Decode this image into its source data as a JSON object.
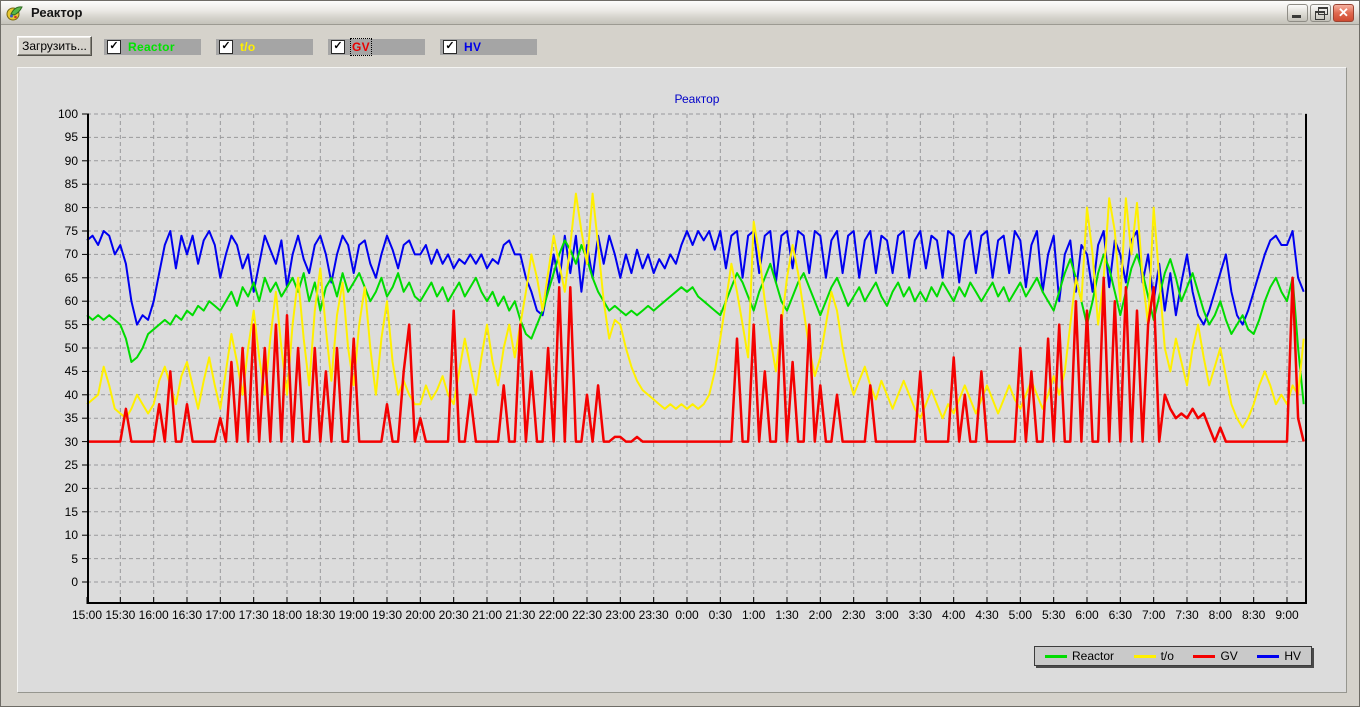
{
  "window": {
    "title": "Реактор",
    "controls": [
      "minimize",
      "restore",
      "close"
    ]
  },
  "toolbar": {
    "load_button": "Загрузить...",
    "checkboxes": [
      {
        "label": "Reactor",
        "color": "#00E400",
        "checked": true,
        "focused": false
      },
      {
        "label": "t/o",
        "color": "#FFF000",
        "checked": true,
        "focused": false
      },
      {
        "label": "GV",
        "color": "#E80000",
        "checked": true,
        "focused": true
      },
      {
        "label": "HV",
        "color": "#0000E8",
        "checked": true,
        "focused": false
      }
    ]
  },
  "chart_data": {
    "type": "line",
    "title": "Реактор",
    "title_color": "#0000C8",
    "plot_bg": "#DCDCDC",
    "grid": true,
    "ylim": [
      0,
      100
    ],
    "y_tick_step": 5,
    "x_start_hour": 15,
    "x_span_hours": 18.3,
    "x_tick_interval_hours": 0.5,
    "sample_interval_minutes": 5,
    "x_tick_labels": [
      "15:00",
      "15:30",
      "16:00",
      "16:30",
      "17:00",
      "17:30",
      "18:00",
      "18:30",
      "19:00",
      "19:30",
      "20:00",
      "20:30",
      "21:00",
      "21:30",
      "22:00",
      "22:30",
      "23:00",
      "23:30",
      "0:00",
      "0:30",
      "1:00",
      "1:30",
      "2:00",
      "2:30",
      "3:00",
      "3:30",
      "4:00",
      "4:30",
      "5:00",
      "5:30",
      "6:00",
      "6:30",
      "7:00",
      "7:30",
      "8:00",
      "8:30",
      "9:00"
    ],
    "legend": {
      "position": "bottom-right",
      "entries": [
        "Reactor",
        "t/o",
        "GV",
        "HV"
      ]
    },
    "draw_order": [
      "HV",
      "Reactor",
      "t/o",
      "GV"
    ],
    "series": [
      {
        "name": "Reactor",
        "color": "#00DC00",
        "stroke_width": 2,
        "values": [
          57,
          56,
          57,
          56,
          57,
          56,
          55,
          52,
          47,
          48,
          50,
          53,
          54,
          55,
          56,
          55,
          57,
          56,
          58,
          57,
          59,
          58,
          60,
          59,
          58,
          60,
          62,
          59,
          63,
          61,
          64,
          60,
          65,
          62,
          64,
          61,
          63,
          65,
          62,
          66,
          60,
          64,
          58,
          63,
          65,
          61,
          66,
          62,
          64,
          66,
          63,
          60,
          62,
          65,
          61,
          63,
          66,
          62,
          64,
          61,
          60,
          62,
          64,
          61,
          63,
          60,
          62,
          64,
          61,
          63,
          65,
          62,
          60,
          62,
          59,
          61,
          58,
          60,
          56,
          53,
          52,
          55,
          58,
          62,
          66,
          70,
          73,
          71,
          68,
          72,
          69,
          65,
          62,
          60,
          58,
          59,
          58,
          57,
          58,
          57,
          58,
          59,
          58,
          59,
          60,
          61,
          62,
          63,
          62,
          63,
          61,
          60,
          59,
          58,
          57,
          60,
          63,
          66,
          64,
          61,
          58,
          62,
          65,
          68,
          64,
          60,
          58,
          61,
          64,
          66,
          63,
          60,
          57,
          60,
          63,
          65,
          62,
          59,
          61,
          63,
          60,
          62,
          64,
          61,
          59,
          62,
          64,
          61,
          63,
          60,
          62,
          60,
          63,
          61,
          64,
          62,
          60,
          63,
          61,
          64,
          62,
          60,
          62,
          64,
          61,
          63,
          60,
          62,
          64,
          61,
          63,
          65,
          62,
          60,
          58,
          62,
          66,
          69,
          65,
          60,
          55,
          60,
          66,
          70,
          67,
          62,
          57,
          62,
          67,
          70,
          66,
          61,
          56,
          61,
          66,
          69,
          65,
          60,
          63,
          66,
          62,
          58,
          55,
          57,
          60,
          56,
          53,
          55,
          57,
          54,
          53,
          56,
          60,
          63,
          65,
          62,
          60,
          65,
          50,
          38
        ]
      },
      {
        "name": "t/o",
        "color": "#FFF000",
        "stroke_width": 2,
        "values": [
          38,
          39,
          40,
          46,
          42,
          37,
          36,
          35,
          37,
          40,
          38,
          36,
          38,
          43,
          46,
          42,
          38,
          44,
          47,
          42,
          37,
          43,
          48,
          42,
          37,
          45,
          53,
          47,
          40,
          50,
          58,
          48,
          40,
          52,
          62,
          50,
          40,
          55,
          65,
          52,
          42,
          58,
          67,
          54,
          43,
          57,
          64,
          50,
          42,
          55,
          63,
          50,
          40,
          52,
          60,
          47,
          40,
          43,
          40,
          38,
          38,
          42,
          39,
          41,
          44,
          40,
          38,
          45,
          52,
          46,
          40,
          48,
          55,
          47,
          42,
          50,
          55,
          48,
          55,
          62,
          70,
          65,
          58,
          66,
          74,
          68,
          62,
          72,
          83,
          75,
          68,
          83,
          72,
          60,
          52,
          56,
          55,
          50,
          46,
          43,
          41,
          40,
          39,
          38,
          37,
          38,
          37,
          38,
          37,
          38,
          37,
          38,
          40,
          45,
          52,
          60,
          68,
          62,
          55,
          48,
          77,
          70,
          60,
          52,
          45,
          55,
          65,
          72,
          66,
          58,
          50,
          44,
          48,
          55,
          62,
          58,
          50,
          44,
          40,
          43,
          46,
          42,
          39,
          43,
          40,
          37,
          40,
          43,
          40,
          37,
          35,
          38,
          41,
          38,
          35,
          38,
          36,
          39,
          42,
          39,
          36,
          39,
          42,
          39,
          36,
          39,
          42,
          39,
          37,
          40,
          43,
          40,
          37,
          40,
          44,
          40,
          45,
          55,
          65,
          60,
          80,
          70,
          55,
          65,
          82,
          75,
          60,
          82,
          70,
          81,
          65,
          55,
          80,
          65,
          50,
          45,
          52,
          47,
          42,
          50,
          55,
          48,
          42,
          46,
          50,
          44,
          38,
          35,
          33,
          35,
          38,
          42,
          45,
          42,
          38,
          40,
          38,
          42,
          40,
          52
        ]
      },
      {
        "name": "GV",
        "color": "#F40000",
        "stroke_width": 2.5,
        "values": [
          30,
          30,
          30,
          30,
          30,
          30,
          30,
          37,
          30,
          30,
          30,
          30,
          30,
          38,
          30,
          45,
          30,
          30,
          38,
          30,
          30,
          30,
          30,
          30,
          35,
          30,
          47,
          30,
          50,
          30,
          55,
          30,
          50,
          30,
          55,
          30,
          57,
          30,
          50,
          30,
          30,
          50,
          30,
          45,
          30,
          50,
          30,
          30,
          52,
          30,
          30,
          30,
          30,
          30,
          38,
          30,
          30,
          45,
          55,
          30,
          35,
          30,
          30,
          30,
          30,
          30,
          58,
          30,
          30,
          40,
          30,
          30,
          30,
          30,
          30,
          42,
          30,
          30,
          55,
          30,
          45,
          30,
          30,
          50,
          30,
          63,
          30,
          63,
          30,
          30,
          40,
          30,
          42,
          30,
          30,
          31,
          31,
          30,
          30,
          31,
          30,
          30,
          30,
          30,
          30,
          30,
          30,
          30,
          30,
          30,
          30,
          30,
          30,
          30,
          30,
          30,
          30,
          52,
          30,
          30,
          55,
          30,
          45,
          30,
          30,
          57,
          30,
          47,
          30,
          30,
          55,
          30,
          42,
          30,
          30,
          40,
          30,
          30,
          30,
          30,
          30,
          42,
          30,
          30,
          30,
          30,
          30,
          30,
          30,
          30,
          45,
          30,
          30,
          30,
          30,
          30,
          48,
          30,
          40,
          30,
          30,
          45,
          30,
          30,
          30,
          30,
          30,
          30,
          50,
          30,
          45,
          30,
          30,
          52,
          30,
          55,
          30,
          30,
          60,
          30,
          58,
          30,
          30,
          65,
          30,
          60,
          30,
          63,
          30,
          58,
          30,
          55,
          63,
          30,
          40,
          37,
          35,
          36,
          35,
          37,
          35,
          36,
          33,
          30,
          33,
          30,
          30,
          30,
          30,
          30,
          30,
          30,
          30,
          30,
          30,
          30,
          30,
          65,
          35,
          30
        ]
      },
      {
        "name": "HV",
        "color": "#0000F0",
        "stroke_width": 2,
        "values": [
          73,
          74,
          72,
          75,
          74,
          70,
          72,
          68,
          60,
          55,
          57,
          56,
          60,
          66,
          72,
          75,
          67,
          74,
          70,
          74,
          68,
          73,
          75,
          72,
          65,
          70,
          74,
          72,
          67,
          70,
          62,
          68,
          74,
          71,
          68,
          73,
          63,
          70,
          74,
          69,
          66,
          72,
          74,
          70,
          64,
          70,
          74,
          72,
          66,
          72,
          73,
          68,
          65,
          70,
          74,
          71,
          67,
          72,
          73,
          70,
          70,
          72,
          68,
          71,
          68,
          70,
          67,
          69,
          68,
          70,
          68,
          70,
          67,
          69,
          68,
          72,
          73,
          70,
          70,
          65,
          62,
          58,
          57,
          63,
          70,
          64,
          74,
          66,
          74,
          62,
          72,
          65,
          74,
          68,
          74,
          70,
          65,
          70,
          66,
          71,
          67,
          70,
          66,
          69,
          67,
          70,
          68,
          72,
          75,
          72,
          75,
          73,
          75,
          71,
          75,
          67,
          74,
          75,
          65,
          74,
          75,
          66,
          74,
          75,
          64,
          74,
          75,
          67,
          75,
          74,
          66,
          75,
          74,
          65,
          73,
          75,
          66,
          74,
          75,
          65,
          73,
          75,
          66,
          74,
          73,
          66,
          74,
          75,
          65,
          73,
          75,
          67,
          74,
          73,
          65,
          75,
          74,
          64,
          73,
          75,
          66,
          74,
          75,
          65,
          73,
          74,
          66,
          75,
          73,
          63,
          72,
          75,
          62,
          70,
          74,
          60,
          70,
          73,
          62,
          72,
          70,
          62,
          72,
          75,
          63,
          73,
          70,
          64,
          73,
          75,
          64,
          70,
          60,
          68,
          58,
          66,
          57,
          64,
          70,
          62,
          57,
          55,
          58,
          62,
          66,
          70,
          62,
          57,
          55,
          58,
          62,
          66,
          70,
          73,
          74,
          72,
          72,
          75,
          65,
          62
        ]
      }
    ]
  }
}
